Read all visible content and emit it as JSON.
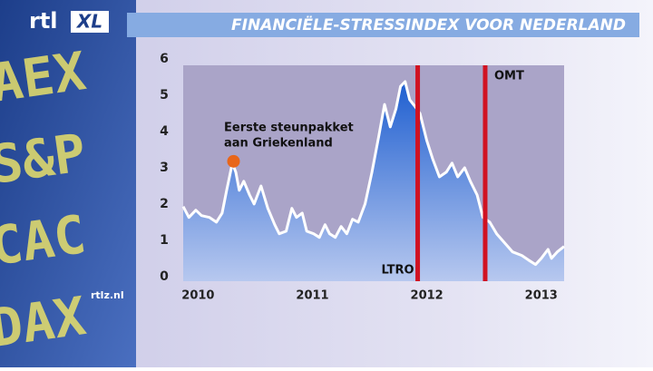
{
  "logo": [
    "rtl",
    "XL"
  ],
  "website": "rtlz.nl",
  "ticker": [
    "AEX",
    "S&P",
    "CAC",
    "DAX"
  ],
  "chart_data": {
    "type": "area",
    "title": "FINANCIËLE-STRESSINDEX VOOR NEDERLAND",
    "x": [
      2009.87,
      2009.92,
      2009.98,
      2010.03,
      2010.1,
      2010.16,
      2010.21,
      2010.25,
      2010.3,
      2010.33,
      2010.36,
      2010.4,
      2010.45,
      2010.49,
      2010.55,
      2010.61,
      2010.67,
      2010.71,
      2010.77,
      2010.82,
      2010.86,
      2010.91,
      2010.95,
      2011.01,
      2011.06,
      2011.11,
      2011.15,
      2011.2,
      2011.25,
      2011.3,
      2011.35,
      2011.4,
      2011.46,
      2011.52,
      2011.58,
      2011.63,
      2011.68,
      2011.73,
      2011.77,
      2011.81,
      2011.85,
      2011.9,
      2011.94,
      2012.0,
      2012.05,
      2012.11,
      2012.17,
      2012.22,
      2012.27,
      2012.33,
      2012.38,
      2012.44,
      2012.49,
      2012.55,
      2012.61,
      2012.68,
      2012.75,
      2012.83,
      2012.89,
      2012.95,
      2013.0,
      2013.06,
      2013.09,
      2013.14,
      2013.2
    ],
    "series": [
      {
        "color": "#ffffff",
        "values": [
          1.93,
          1.63,
          1.83,
          1.68,
          1.63,
          1.5,
          1.75,
          2.38,
          3.13,
          2.88,
          2.38,
          2.63,
          2.25,
          2.0,
          2.5,
          1.88,
          1.43,
          1.18,
          1.25,
          1.88,
          1.63,
          1.75,
          1.25,
          1.18,
          1.08,
          1.43,
          1.18,
          1.08,
          1.38,
          1.18,
          1.58,
          1.5,
          2.0,
          2.88,
          3.88,
          4.75,
          4.13,
          4.63,
          5.25,
          5.38,
          4.88,
          4.68,
          4.5,
          3.75,
          3.25,
          2.75,
          2.88,
          3.13,
          2.75,
          3.0,
          2.63,
          2.25,
          1.63,
          1.5,
          1.18,
          0.93,
          0.68,
          0.58,
          0.45,
          0.33,
          0.5,
          0.75,
          0.5,
          0.68,
          0.83
        ]
      }
    ],
    "fill_color": "#2f6fd8",
    "xlim": [
      2009.87,
      2013.2
    ],
    "xticks": [
      2010,
      2011,
      2012,
      2013
    ],
    "ylim": [
      -0.13,
      5.98
    ],
    "yticks": [
      0,
      1,
      2,
      3,
      4,
      5,
      6
    ],
    "events": [
      {
        "label": "LTRO",
        "x": 2011.92,
        "color": "#d01222"
      },
      {
        "label": "OMT",
        "x": 2012.51,
        "color": "#d01222"
      }
    ],
    "highlight": {
      "label": [
        "Eerste steunpakket",
        "aan Griekenland"
      ],
      "x": 2010.31,
      "y": 3.18,
      "color": "#e8661a"
    }
  }
}
